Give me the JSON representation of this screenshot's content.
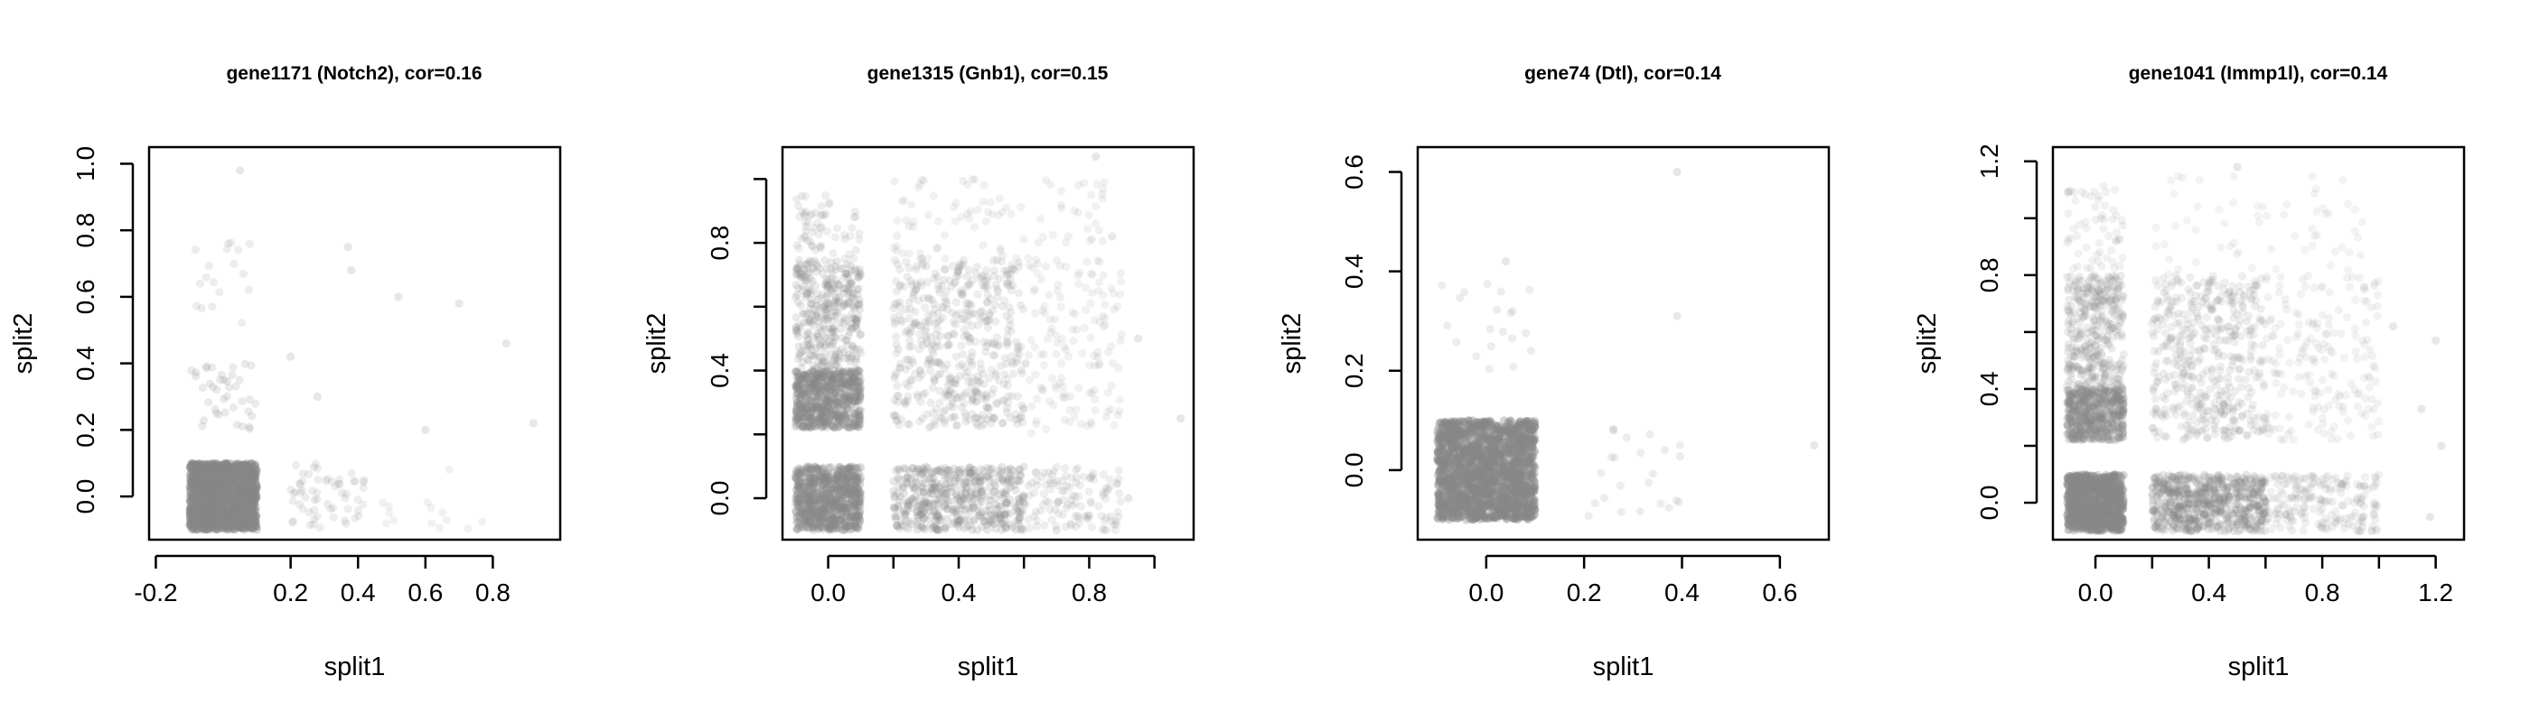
{
  "chart_data": [
    {
      "type": "scatter",
      "title": "gene1171 (Notch2), cor=0.16",
      "xlabel": "split1",
      "ylabel": "split2",
      "xlim": [
        -0.22,
        1.0
      ],
      "ylim": [
        -0.13,
        1.05
      ],
      "xticks": [
        -0.2,
        0.2,
        0.4,
        0.6,
        0.8
      ],
      "xtick_labels": [
        "-0.2",
        "0.2",
        "0.4",
        "0.6",
        "0.8"
      ],
      "yticks": [
        0.0,
        0.2,
        0.4,
        0.6,
        0.8,
        1.0
      ],
      "ytick_labels": [
        "0.0",
        "0.2",
        "0.4",
        "0.6",
        "0.8",
        "1.0"
      ],
      "grid": false,
      "point_color": "#888888",
      "clusters": [
        {
          "x": [
            -0.1,
            0.1
          ],
          "y": [
            -0.1,
            0.1
          ],
          "count": 1400,
          "opacity": 0.35
        },
        {
          "x": [
            -0.1,
            0.1
          ],
          "y": [
            0.2,
            0.4
          ],
          "count": 40,
          "opacity": 0.18
        },
        {
          "x": [
            -0.1,
            0.1
          ],
          "y": [
            0.5,
            0.8
          ],
          "count": 18,
          "opacity": 0.15
        },
        {
          "x": [
            0.2,
            0.42
          ],
          "y": [
            -0.1,
            0.1
          ],
          "count": 60,
          "opacity": 0.15
        },
        {
          "x": [
            0.45,
            0.9
          ],
          "y": [
            -0.1,
            0.1
          ],
          "count": 14,
          "opacity": 0.12
        }
      ],
      "points": [
        [
          0.05,
          0.98
        ],
        [
          0.37,
          0.75
        ],
        [
          0.38,
          0.68
        ],
        [
          0.2,
          0.42
        ],
        [
          0.28,
          0.3
        ],
        [
          0.52,
          0.6
        ],
        [
          0.7,
          0.58
        ],
        [
          0.92,
          0.22
        ],
        [
          0.84,
          0.46
        ],
        [
          0.6,
          0.2
        ]
      ]
    },
    {
      "type": "scatter",
      "title": "gene1315 (Gnb1), cor=0.15",
      "xlabel": "split1",
      "ylabel": "split2",
      "xlim": [
        -0.14,
        1.12
      ],
      "ylim": [
        -0.13,
        1.1
      ],
      "xticks": [
        0.0,
        0.2,
        0.4,
        0.6,
        0.8,
        1.0
      ],
      "xtick_labels": [
        "0.0",
        "",
        "0.4",
        "",
        "0.8",
        ""
      ],
      "yticks": [
        0.0,
        0.2,
        0.4,
        0.6,
        0.8,
        1.0
      ],
      "ytick_labels": [
        "0.0",
        "",
        "0.4",
        "",
        "0.8",
        ""
      ],
      "grid": false,
      "point_color": "#888888",
      "clusters": [
        {
          "x": [
            -0.1,
            0.1
          ],
          "y": [
            -0.1,
            0.1
          ],
          "count": 700,
          "opacity": 0.28
        },
        {
          "x": [
            -0.1,
            0.1
          ],
          "y": [
            0.22,
            0.4
          ],
          "count": 600,
          "opacity": 0.25
        },
        {
          "x": [
            -0.1,
            0.1
          ],
          "y": [
            0.4,
            0.75
          ],
          "count": 350,
          "opacity": 0.18
        },
        {
          "x": [
            -0.1,
            0.1
          ],
          "y": [
            0.75,
            0.95
          ],
          "count": 60,
          "opacity": 0.14
        },
        {
          "x": [
            0.2,
            0.6
          ],
          "y": [
            -0.1,
            0.1
          ],
          "count": 450,
          "opacity": 0.2
        },
        {
          "x": [
            0.6,
            0.9
          ],
          "y": [
            -0.1,
            0.1
          ],
          "count": 120,
          "opacity": 0.14
        },
        {
          "x": [
            0.2,
            0.6
          ],
          "y": [
            0.22,
            0.75
          ],
          "count": 500,
          "opacity": 0.15
        },
        {
          "x": [
            0.2,
            0.85
          ],
          "y": [
            0.75,
            1.0
          ],
          "count": 90,
          "opacity": 0.12
        },
        {
          "x": [
            0.6,
            0.9
          ],
          "y": [
            0.2,
            0.75
          ],
          "count": 140,
          "opacity": 0.12
        }
      ],
      "points": [
        [
          0.95,
          0.5
        ],
        [
          1.08,
          0.25
        ],
        [
          0.87,
          0.82
        ],
        [
          0.82,
          1.07
        ],
        [
          0.7,
          -0.1
        ],
        [
          0.92,
          0.0
        ]
      ]
    },
    {
      "type": "scatter",
      "title": "gene74 (Dtl), cor=0.14",
      "xlabel": "split1",
      "ylabel": "split2",
      "xlim": [
        -0.14,
        0.7
      ],
      "ylim": [
        -0.14,
        0.65
      ],
      "xticks": [
        0.0,
        0.2,
        0.4,
        0.6
      ],
      "xtick_labels": [
        "0.0",
        "0.2",
        "0.4",
        "0.6"
      ],
      "yticks": [
        0.0,
        0.2,
        0.4,
        0.6
      ],
      "ytick_labels": [
        "0.0",
        "0.2",
        "0.4",
        "0.6"
      ],
      "grid": false,
      "point_color": "#888888",
      "clusters": [
        {
          "x": [
            -0.1,
            0.1
          ],
          "y": [
            -0.1,
            0.1
          ],
          "count": 1800,
          "opacity": 0.35
        },
        {
          "x": [
            -0.1,
            0.1
          ],
          "y": [
            0.2,
            0.4
          ],
          "count": 20,
          "opacity": 0.15
        },
        {
          "x": [
            0.2,
            0.4
          ],
          "y": [
            -0.1,
            0.1
          ],
          "count": 22,
          "opacity": 0.15
        }
      ],
      "points": [
        [
          0.39,
          0.6
        ],
        [
          0.39,
          0.31
        ],
        [
          0.04,
          0.42
        ],
        [
          0.67,
          0.05
        ],
        [
          0.26,
          0.08
        ]
      ]
    },
    {
      "type": "scatter",
      "title": "gene1041 (Immp1l), cor=0.14",
      "xlabel": "split1",
      "ylabel": "split2",
      "xlim": [
        -0.15,
        1.3
      ],
      "ylim": [
        -0.13,
        1.25
      ],
      "xticks": [
        0.0,
        0.2,
        0.4,
        0.6,
        0.8,
        1.0,
        1.2
      ],
      "xtick_labels": [
        "0.0",
        "",
        "0.4",
        "",
        "0.8",
        "",
        "1.2"
      ],
      "yticks": [
        0.0,
        0.2,
        0.4,
        0.6,
        0.8,
        1.0,
        1.2
      ],
      "ytick_labels": [
        "0.0",
        "",
        "0.4",
        "",
        "0.8",
        "",
        "1.2"
      ],
      "grid": false,
      "point_color": "#888888",
      "clusters": [
        {
          "x": [
            -0.1,
            0.1
          ],
          "y": [
            -0.1,
            0.1
          ],
          "count": 900,
          "opacity": 0.3
        },
        {
          "x": [
            -0.1,
            0.1
          ],
          "y": [
            0.22,
            0.4
          ],
          "count": 500,
          "opacity": 0.22
        },
        {
          "x": [
            -0.1,
            0.1
          ],
          "y": [
            0.4,
            0.8
          ],
          "count": 350,
          "opacity": 0.16
        },
        {
          "x": [
            -0.1,
            0.1
          ],
          "y": [
            0.8,
            1.12
          ],
          "count": 60,
          "opacity": 0.12
        },
        {
          "x": [
            0.2,
            0.6
          ],
          "y": [
            -0.1,
            0.1
          ],
          "count": 600,
          "opacity": 0.2
        },
        {
          "x": [
            0.6,
            1.0
          ],
          "y": [
            -0.1,
            0.1
          ],
          "count": 200,
          "opacity": 0.13
        },
        {
          "x": [
            0.2,
            0.6
          ],
          "y": [
            0.22,
            0.8
          ],
          "count": 450,
          "opacity": 0.14
        },
        {
          "x": [
            0.6,
            1.0
          ],
          "y": [
            0.22,
            0.8
          ],
          "count": 180,
          "opacity": 0.11
        },
        {
          "x": [
            0.2,
            0.95
          ],
          "y": [
            0.8,
            1.15
          ],
          "count": 60,
          "opacity": 0.1
        }
      ],
      "points": [
        [
          1.22,
          0.2
        ],
        [
          1.15,
          0.33
        ],
        [
          1.2,
          0.57
        ],
        [
          1.05,
          0.62
        ],
        [
          0.5,
          1.18
        ],
        [
          1.18,
          -0.05
        ]
      ]
    }
  ]
}
